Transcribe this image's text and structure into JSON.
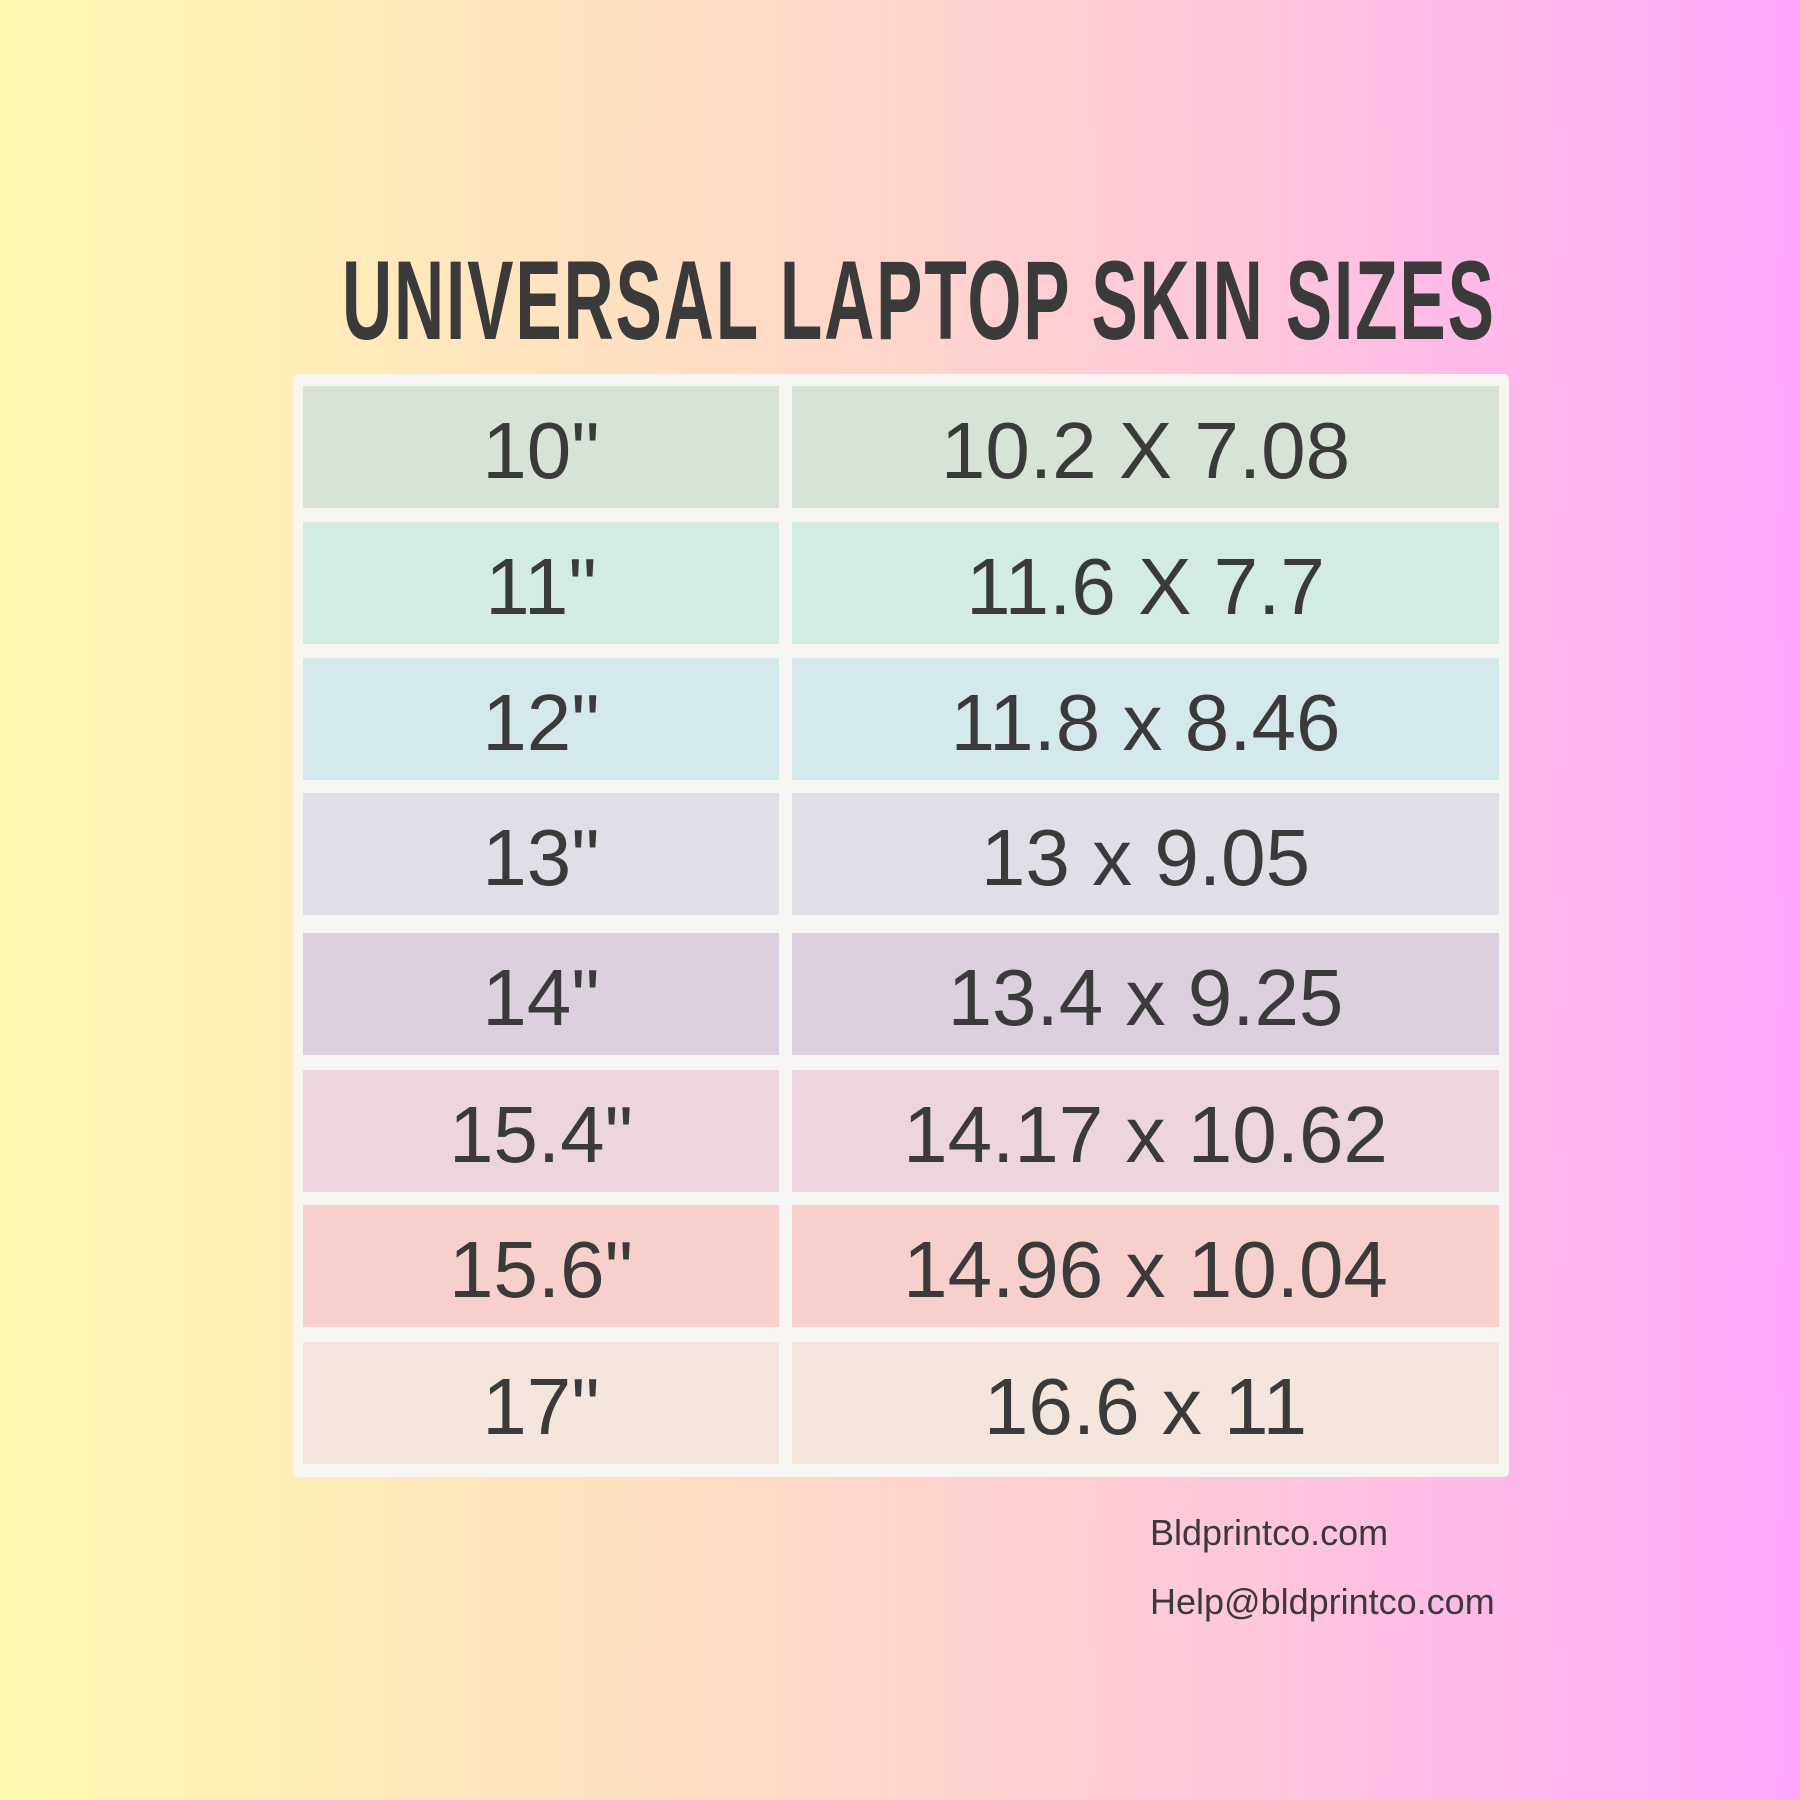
{
  "title": "UNIVERSAL LAPTOP SKIN SIZES",
  "rows": [
    {
      "size": "10\"",
      "dimensions": "10.2 X 7.08",
      "color": "#d8e3d8"
    },
    {
      "size": "11\"",
      "dimensions": "11.6 X 7.7",
      "color": "#d2ece3"
    },
    {
      "size": "12\"",
      "dimensions": "11.8 x 8.46",
      "color": "#d4e9ec"
    },
    {
      "size": "13\"",
      "dimensions": "13 x 9.05",
      "color": "#e0dfe8"
    },
    {
      "size": "14\"",
      "dimensions": "13.4 x 9.25",
      "color": "#dcd0de"
    },
    {
      "size": "15.4\"",
      "dimensions": "14.17 x 10.62",
      "color": "#edd5e0"
    },
    {
      "size": "15.6\"",
      "dimensions": "14.96 x 10.04",
      "color": "#f8d0cb"
    },
    {
      "size": "17\"",
      "dimensions": "16.6 x 11",
      "color": "#f4e6dc"
    }
  ],
  "footer": {
    "website": "Bldprintco.com",
    "email": "Help@bldprintco.com"
  }
}
